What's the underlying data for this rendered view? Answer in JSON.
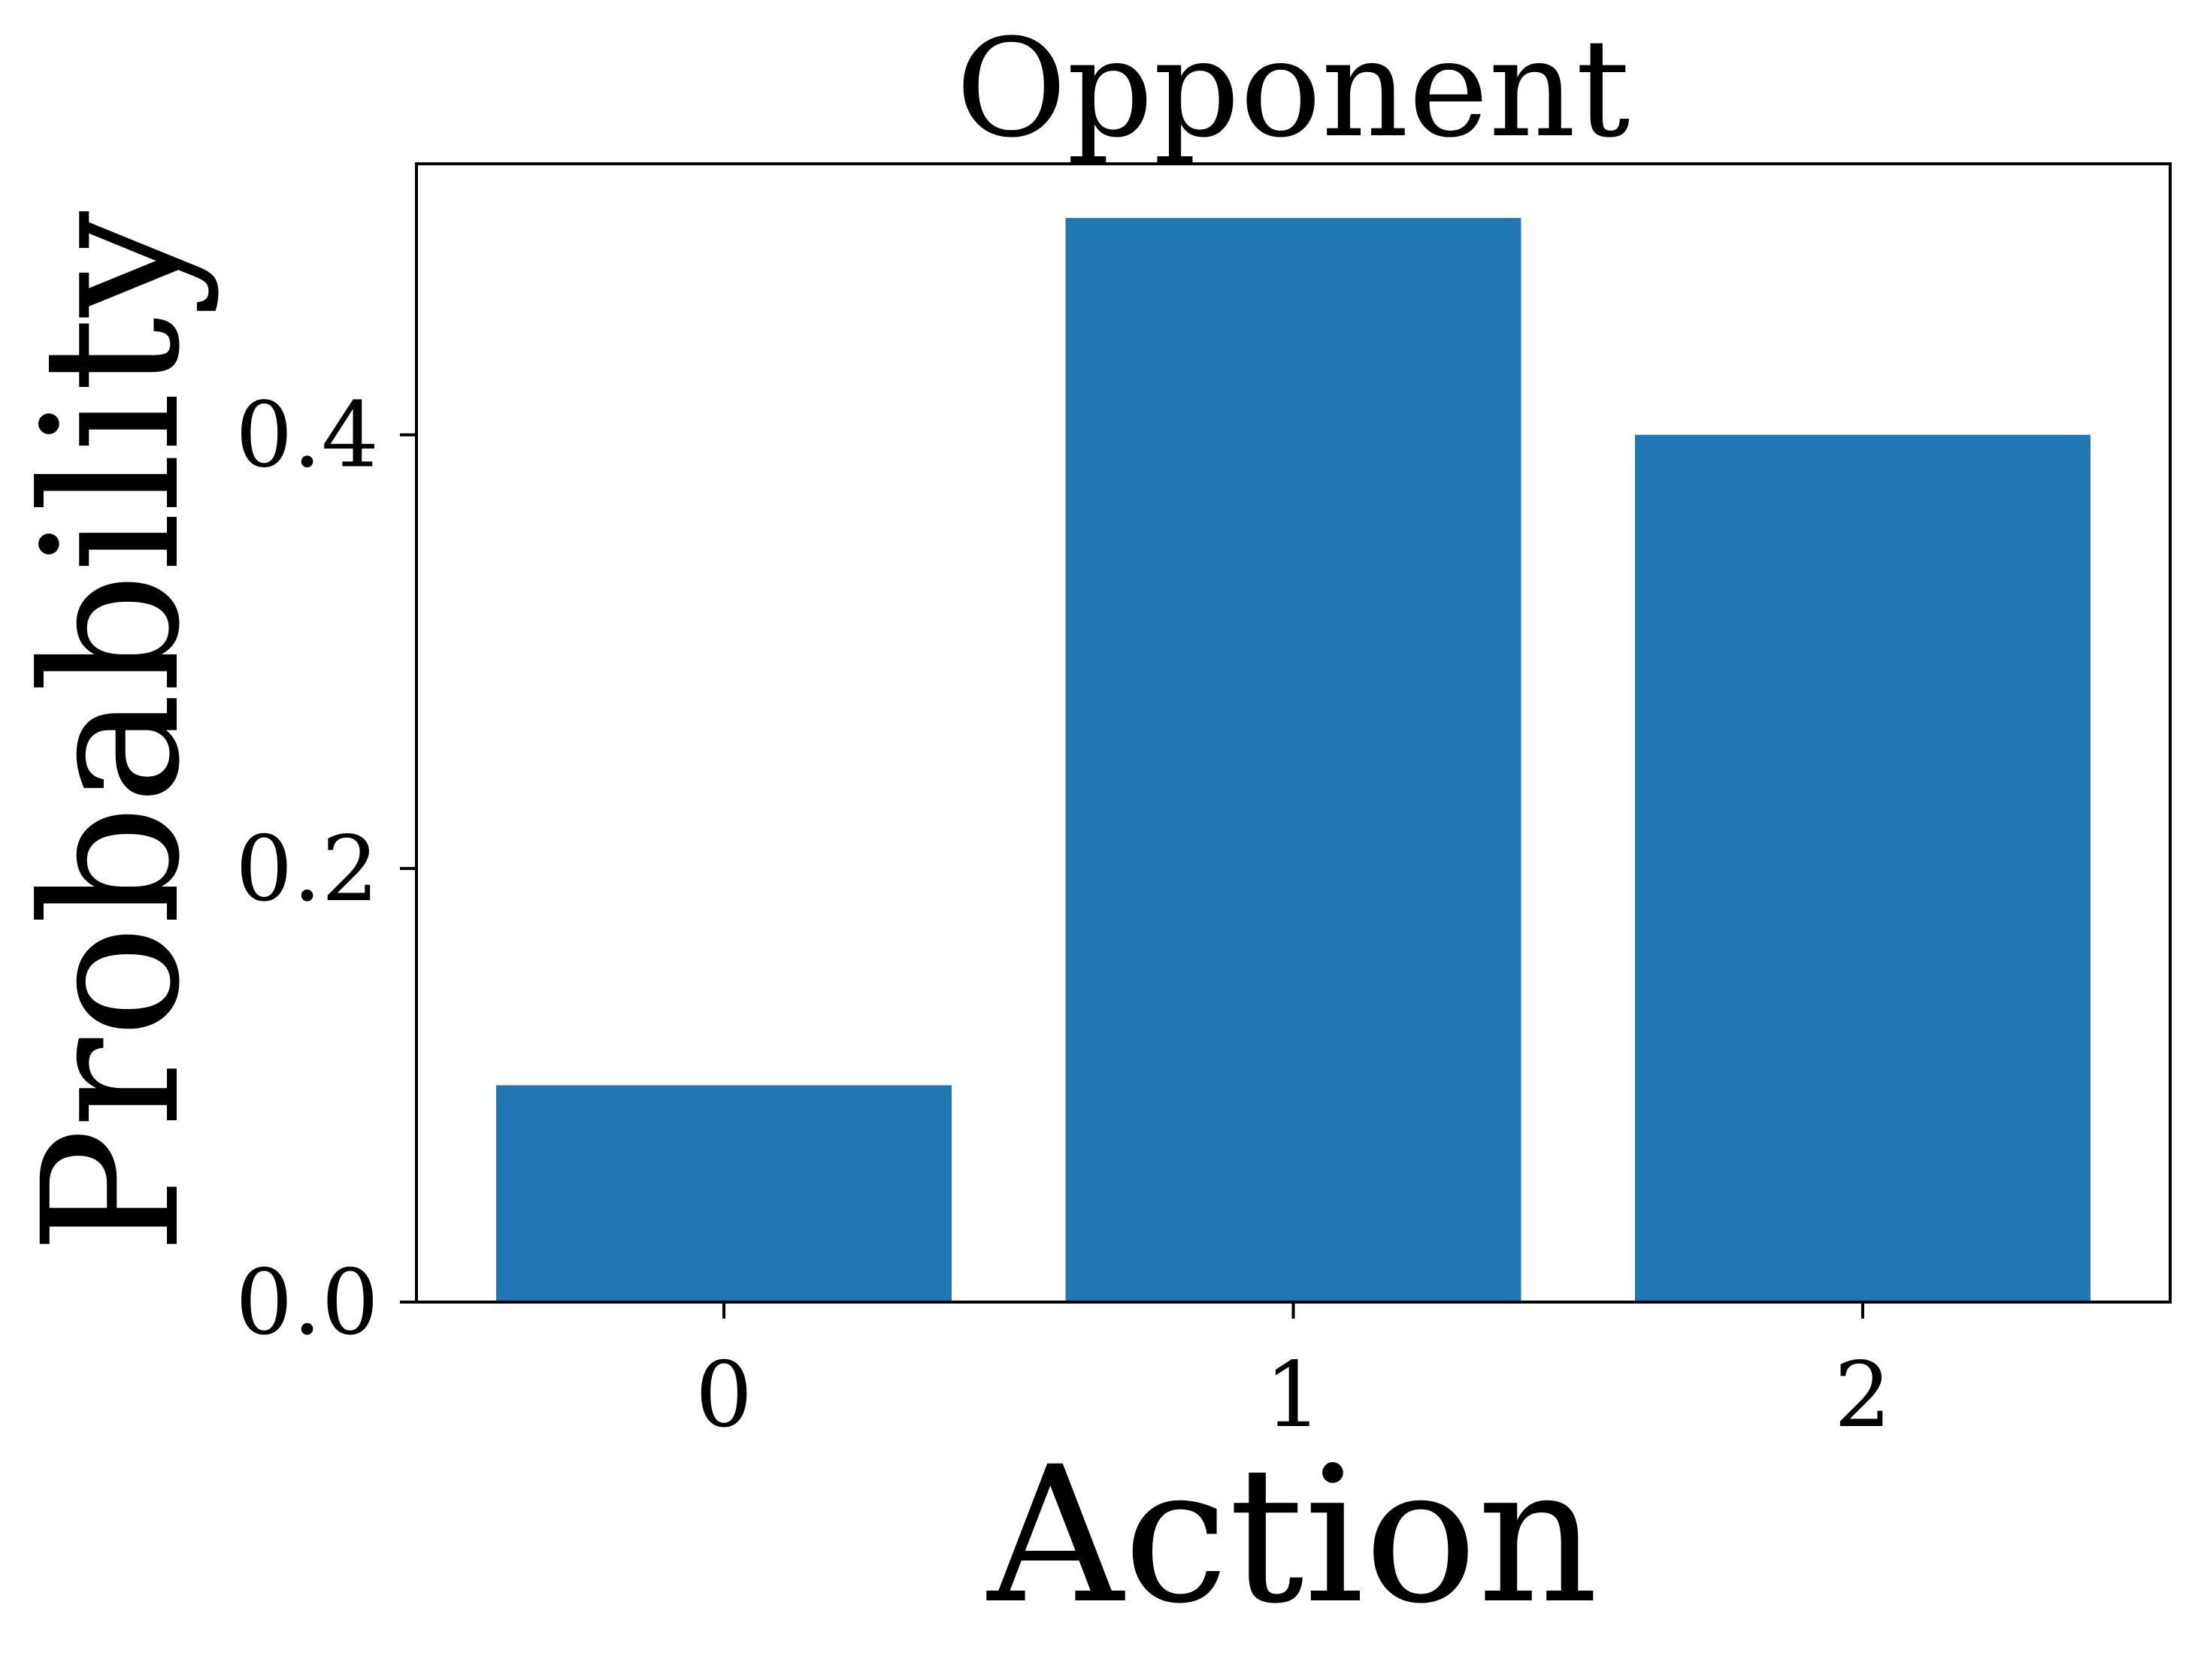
{
  "chart_data": {
    "type": "bar",
    "title": "Opponent",
    "xlabel": "Action",
    "ylabel": "Probability",
    "categories": [
      "0",
      "1",
      "2"
    ],
    "values": [
      0.1,
      0.5,
      0.4
    ],
    "ylim": [
      0,
      0.525
    ],
    "yticks": [
      0.0,
      0.2,
      0.4
    ],
    "ytick_labels": [
      "0.0",
      "0.2",
      "0.4"
    ],
    "bar_color": "#2077b4",
    "grid": false,
    "legend": "none"
  }
}
